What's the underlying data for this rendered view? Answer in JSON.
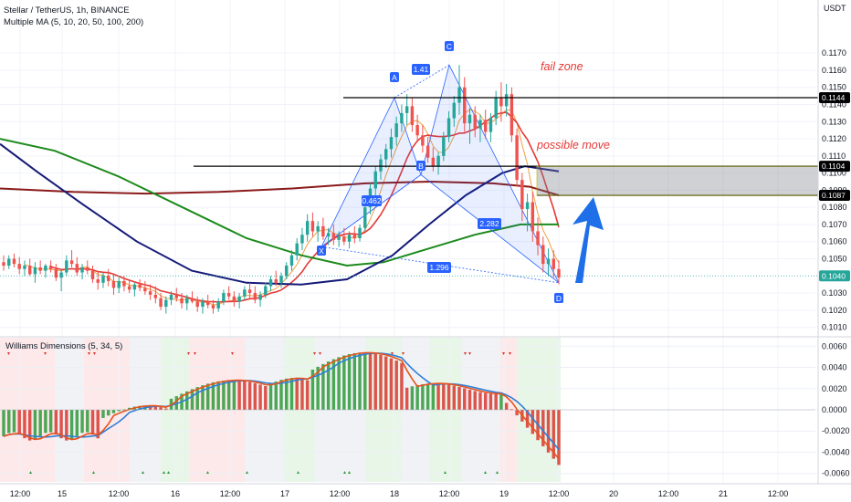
{
  "header": {
    "symbol_line": "Stellar / TetherUS, 1h, BINANCE",
    "indicator_line": "Multiple MA (5, 10, 20, 50, 100, 200)",
    "currency": "USDT",
    "sub_indicator": "Williams Dimensions (5, 34, 5)"
  },
  "annotations": {
    "fail_zone": "fail zone",
    "possible_move": "possible move"
  },
  "colors": {
    "up": "#26a69a",
    "down": "#ef5350",
    "ma_fast": "#f0a040",
    "ma_red": "#e53935",
    "ma_green": "#1b8a1b",
    "ma_navy": "#141a78",
    "ma_maroon": "#8b1a1a",
    "pattern": "#2962ff",
    "arrow": "#1e6fe8"
  },
  "chart_data": [
    {
      "type": "candlestick",
      "ylim": [
        0.1005,
        0.1185
      ],
      "y_ticks": [
        "0.1170",
        "0.1160",
        "0.1150",
        "0.1140",
        "0.1130",
        "0.1120",
        "0.1110",
        "0.1100",
        "0.1090",
        "0.1080",
        "0.1070",
        "0.1060",
        "0.1050",
        "0.1030",
        "0.1020",
        "0.1010"
      ],
      "x_ticks": [
        "12:00",
        "15",
        "12:00",
        "16",
        "12:00",
        "17",
        "12:00",
        "18",
        "12:00",
        "19",
        "12:00",
        "20",
        "12:00",
        "21",
        "12:00"
      ],
      "price_labels": [
        "0.1144",
        "0.1104",
        "0.1087",
        "0.1040"
      ],
      "levels": [
        0.1144,
        0.1104,
        0.1087
      ],
      "last_price": 0.104,
      "harmonic_points": [
        {
          "label": "X",
          "y": 0.1057
        },
        {
          "label": "A",
          "y": 0.1144
        },
        {
          "label": "B",
          "y": 0.1099
        },
        {
          "label": "C",
          "y": 0.1163
        },
        {
          "label": "D",
          "y": 0.1036
        }
      ],
      "ratios": [
        "0.462",
        "1.41",
        "2.282",
        "1.296"
      ],
      "candles": [
        [
          0.1048,
          0.1052,
          0.1043,
          0.1046
        ],
        [
          0.1046,
          0.1052,
          0.1044,
          0.105
        ],
        [
          0.105,
          0.1053,
          0.1045,
          0.1047
        ],
        [
          0.1047,
          0.1051,
          0.1041,
          0.1044
        ],
        [
          0.1044,
          0.1049,
          0.104,
          0.1046
        ],
        [
          0.1046,
          0.105,
          0.104,
          0.1041
        ],
        [
          0.1041,
          0.1048,
          0.1036,
          0.1045
        ],
        [
          0.1045,
          0.1049,
          0.1041,
          0.1043
        ],
        [
          0.1043,
          0.1047,
          0.1039,
          0.1046
        ],
        [
          0.1046,
          0.1049,
          0.1042,
          0.1044
        ],
        [
          0.1044,
          0.1047,
          0.1037,
          0.1039
        ],
        [
          0.1039,
          0.1044,
          0.1031,
          0.1042
        ],
        [
          0.1042,
          0.1052,
          0.104,
          0.1049
        ],
        [
          0.1049,
          0.1055,
          0.1045,
          0.1047
        ],
        [
          0.1047,
          0.1051,
          0.104,
          0.1042
        ],
        [
          0.1042,
          0.1047,
          0.1038,
          0.1045
        ],
        [
          0.1045,
          0.1049,
          0.1041,
          0.1043
        ],
        [
          0.1043,
          0.1046,
          0.1036,
          0.1038
        ],
        [
          0.1038,
          0.1043,
          0.1032,
          0.1036
        ],
        [
          0.1036,
          0.1042,
          0.1033,
          0.104
        ],
        [
          0.104,
          0.1044,
          0.1034,
          0.1037
        ],
        [
          0.1037,
          0.1041,
          0.1029,
          0.1033
        ],
        [
          0.1033,
          0.1039,
          0.103,
          0.1037
        ],
        [
          0.1037,
          0.104,
          0.1031,
          0.1034
        ],
        [
          0.1034,
          0.1038,
          0.103,
          0.1032
        ],
        [
          0.1032,
          0.1036,
          0.1028,
          0.1035
        ],
        [
          0.1035,
          0.1038,
          0.1031,
          0.1033
        ],
        [
          0.1033,
          0.1037,
          0.1029,
          0.1031
        ],
        [
          0.1031,
          0.1035,
          0.1026,
          0.1029
        ],
        [
          0.1029,
          0.1034,
          0.1024,
          0.1027
        ],
        [
          0.1027,
          0.103,
          0.102,
          0.1022
        ],
        [
          0.1022,
          0.1028,
          0.1018,
          0.1026
        ],
        [
          0.1026,
          0.1031,
          0.1023,
          0.1029
        ],
        [
          0.1029,
          0.1033,
          0.1025,
          0.1027
        ],
        [
          0.1027,
          0.103,
          0.1021,
          0.1024
        ],
        [
          0.1024,
          0.1029,
          0.102,
          0.1027
        ],
        [
          0.1027,
          0.1031,
          0.1024,
          0.1025
        ],
        [
          0.1025,
          0.1028,
          0.1019,
          0.1022
        ],
        [
          0.1022,
          0.1027,
          0.1018,
          0.1025
        ],
        [
          0.1025,
          0.1029,
          0.1021,
          0.1023
        ],
        [
          0.1023,
          0.1026,
          0.1018,
          0.1021
        ],
        [
          0.1021,
          0.1027,
          0.1019,
          0.1025
        ],
        [
          0.1025,
          0.1032,
          0.1023,
          0.103
        ],
        [
          0.103,
          0.1034,
          0.1026,
          0.1028
        ],
        [
          0.1028,
          0.1031,
          0.1022,
          0.1025
        ],
        [
          0.1025,
          0.103,
          0.1021,
          0.1028
        ],
        [
          0.1028,
          0.1034,
          0.1026,
          0.1032
        ],
        [
          0.1032,
          0.1036,
          0.1027,
          0.103
        ],
        [
          0.103,
          0.1034,
          0.1024,
          0.1026
        ],
        [
          0.1026,
          0.1031,
          0.1022,
          0.1029
        ],
        [
          0.1029,
          0.1036,
          0.1027,
          0.1034
        ],
        [
          0.1034,
          0.104,
          0.1031,
          0.1038
        ],
        [
          0.1038,
          0.1043,
          0.1034,
          0.1036
        ],
        [
          0.1036,
          0.1042,
          0.1033,
          0.104
        ],
        [
          0.104,
          0.1048,
          0.1038,
          0.1046
        ],
        [
          0.1046,
          0.1055,
          0.1043,
          0.1052
        ],
        [
          0.1052,
          0.1062,
          0.1049,
          0.1059
        ],
        [
          0.1059,
          0.1068,
          0.1055,
          0.1064
        ],
        [
          0.1064,
          0.1076,
          0.106,
          0.1072
        ],
        [
          0.1072,
          0.1077,
          0.1063,
          0.1066
        ],
        [
          0.1066,
          0.1072,
          0.106,
          0.1069
        ],
        [
          0.1069,
          0.1074,
          0.1061,
          0.1063
        ],
        [
          0.1063,
          0.1068,
          0.1058,
          0.1065
        ],
        [
          0.1065,
          0.107,
          0.1058,
          0.1061
        ],
        [
          0.1061,
          0.1066,
          0.1057,
          0.1063
        ],
        [
          0.1063,
          0.1068,
          0.1058,
          0.106
        ],
        [
          0.106,
          0.1066,
          0.1056,
          0.1064
        ],
        [
          0.1064,
          0.1069,
          0.1059,
          0.1062
        ],
        [
          0.1062,
          0.107,
          0.106,
          0.1068
        ],
        [
          0.1068,
          0.1082,
          0.1066,
          0.108
        ],
        [
          0.108,
          0.1094,
          0.1076,
          0.1091
        ],
        [
          0.1091,
          0.1104,
          0.1087,
          0.1101
        ],
        [
          0.1101,
          0.1111,
          0.1096,
          0.1108
        ],
        [
          0.1108,
          0.1117,
          0.1103,
          0.1114
        ],
        [
          0.1114,
          0.1126,
          0.1109,
          0.1121
        ],
        [
          0.1121,
          0.1133,
          0.1116,
          0.1129
        ],
        [
          0.1129,
          0.114,
          0.1124,
          0.1135
        ],
        [
          0.1135,
          0.1146,
          0.1128,
          0.1139
        ],
        [
          0.1139,
          0.1144,
          0.1124,
          0.1128
        ],
        [
          0.1128,
          0.1134,
          0.1118,
          0.1122
        ],
        [
          0.1122,
          0.1128,
          0.1112,
          0.1116
        ],
        [
          0.1116,
          0.1121,
          0.1106,
          0.1109
        ],
        [
          0.1109,
          0.1115,
          0.1101,
          0.1104
        ],
        [
          0.1104,
          0.1112,
          0.1099,
          0.111
        ],
        [
          0.111,
          0.1124,
          0.1107,
          0.1121
        ],
        [
          0.1121,
          0.1136,
          0.1118,
          0.1132
        ],
        [
          0.1132,
          0.1145,
          0.1127,
          0.1141
        ],
        [
          0.1141,
          0.1163,
          0.1134,
          0.115
        ],
        [
          0.115,
          0.1156,
          0.1124,
          0.1129
        ],
        [
          0.1129,
          0.1138,
          0.1117,
          0.1134
        ],
        [
          0.1134,
          0.1139,
          0.1121,
          0.1126
        ],
        [
          0.1126,
          0.1134,
          0.1118,
          0.1131
        ],
        [
          0.1131,
          0.1137,
          0.112,
          0.1124
        ],
        [
          0.1124,
          0.1135,
          0.1118,
          0.1132
        ],
        [
          0.1132,
          0.1148,
          0.1128,
          0.1144
        ],
        [
          0.1144,
          0.1153,
          0.113,
          0.1139
        ],
        [
          0.1139,
          0.1152,
          0.1133,
          0.1146
        ],
        [
          0.1146,
          0.115,
          0.1118,
          0.1122
        ],
        [
          0.1122,
          0.1126,
          0.1092,
          0.1096
        ],
        [
          0.1096,
          0.11,
          0.1072,
          0.1079
        ],
        [
          0.1079,
          0.1088,
          0.1066,
          0.1083
        ],
        [
          0.1083,
          0.1089,
          0.106,
          0.1066
        ],
        [
          0.1066,
          0.1074,
          0.1052,
          0.1058
        ],
        [
          0.1058,
          0.1063,
          0.1042,
          0.1047
        ],
        [
          0.1047,
          0.1056,
          0.104,
          0.105
        ],
        [
          0.105,
          0.1055,
          0.1039,
          0.1044
        ],
        [
          0.1044,
          0.1049,
          0.1035,
          0.1039
        ]
      ]
    },
    {
      "type": "histogram",
      "ylim": [
        -0.0068,
        0.0068
      ],
      "y_ticks": [
        "0.0060",
        "0.0040",
        "0.0020",
        "0.0000",
        "-0.0020",
        "-0.0040",
        "-0.0060"
      ]
    }
  ]
}
